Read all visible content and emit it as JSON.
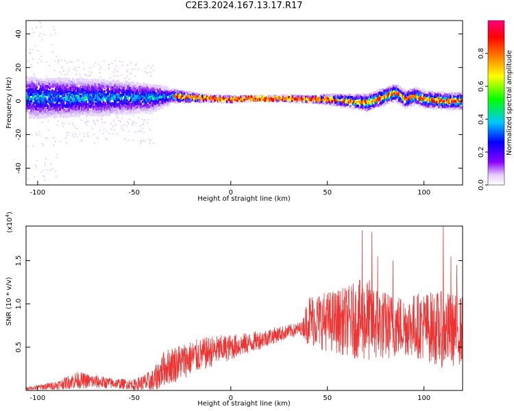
{
  "title": "C2E3.2024.167.13.17.R17",
  "chart_data": [
    {
      "type": "heatmap",
      "xlabel": "Height of straight line (km)",
      "ylabel": "Frequency (Hz)",
      "xlim": [
        -106,
        120
      ],
      "ylim": [
        -50,
        48
      ],
      "x_ticks": [
        "-100",
        "-50",
        "0",
        "50",
        "100"
      ],
      "y_ticks": [
        "40",
        "20",
        "0",
        "-20",
        "-40"
      ],
      "colorbar": {
        "label": "Normalized spectral amplitude",
        "range": [
          0.0,
          1.0
        ],
        "ticks": [
          "0.0",
          "0.2",
          "0.4",
          "0.6",
          "0.8"
        ],
        "colormap": [
          "#ffffff",
          "#8a00ff",
          "#0000ff",
          "#00c8ff",
          "#00ff00",
          "#ffff00",
          "#ff8000",
          "#ff0000",
          "#ff0080"
        ]
      },
      "ridge": {
        "description_points_x": [
          -100,
          -80,
          -60,
          -40,
          -30,
          -20,
          -10,
          0,
          10,
          20,
          30,
          40,
          50,
          60,
          70,
          80,
          85,
          90,
          95,
          100,
          110,
          120
        ],
        "center_freq": [
          2,
          2,
          2,
          2,
          3,
          2,
          1.5,
          1,
          1.5,
          1.5,
          1.5,
          1,
          1,
          0,
          -1,
          3,
          5,
          1,
          3,
          1,
          0,
          0
        ],
        "spread_hz": [
          12,
          11,
          10,
          8,
          4,
          3,
          2,
          2,
          1.5,
          1.5,
          2,
          2,
          3,
          4,
          5,
          5,
          5,
          5,
          5,
          5,
          5,
          5
        ]
      }
    },
    {
      "type": "line",
      "xlabel": "Height of straight line (km)",
      "ylabel": "SNR (10 * v/v)",
      "y_scale_note": "(x10",
      "y_scale_exp": "4",
      "xlim": [
        -106,
        120
      ],
      "ylim": [
        0,
        1.9
      ],
      "x_ticks": [
        "-100",
        "-50",
        "0",
        "50",
        "100"
      ],
      "y_ticks": [
        "0.5",
        "1.0",
        "1.5"
      ],
      "color": "#ee3333",
      "envelope": {
        "x": [
          -106,
          -90,
          -80,
          -70,
          -60,
          -50,
          -40,
          -35,
          -30,
          -20,
          -10,
          0,
          10,
          20,
          30,
          37,
          40,
          50,
          60,
          70,
          80,
          90,
          100,
          110,
          120
        ],
        "mean": [
          0.02,
          0.06,
          0.12,
          0.1,
          0.08,
          0.07,
          0.1,
          0.25,
          0.3,
          0.38,
          0.45,
          0.5,
          0.55,
          0.62,
          0.68,
          0.72,
          0.82,
          0.8,
          0.8,
          0.82,
          0.75,
          0.75,
          0.75,
          0.7,
          0.7
        ],
        "amp": [
          0.02,
          0.05,
          0.1,
          0.08,
          0.06,
          0.06,
          0.15,
          0.2,
          0.22,
          0.2,
          0.18,
          0.15,
          0.12,
          0.1,
          0.08,
          0.08,
          0.3,
          0.35,
          0.4,
          0.5,
          0.4,
          0.35,
          0.4,
          0.45,
          0.4
        ]
      },
      "peaks": [
        [
          68,
          1.85
        ],
        [
          73,
          1.83
        ],
        [
          76,
          1.55
        ],
        [
          84,
          1.5
        ],
        [
          110,
          1.9
        ],
        [
          114,
          1.55
        ],
        [
          117,
          1.45
        ]
      ]
    }
  ]
}
